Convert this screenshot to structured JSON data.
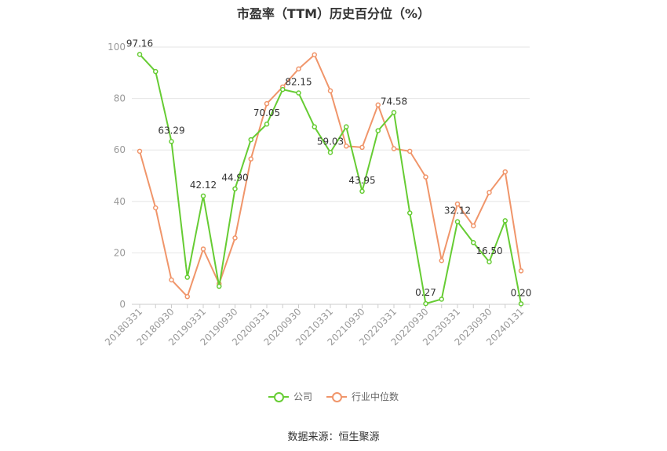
{
  "title": "市盈率（TTM）历史百分位（%）",
  "source": "数据来源：恒生聚源",
  "colors": {
    "company": "#66cc33",
    "industry": "#f0956a",
    "grid": "#e6e6e6",
    "axis": "#cccccc"
  },
  "chart_data": {
    "type": "line",
    "title": "市盈率（TTM）历史百分位（%）",
    "ylim": [
      0,
      100
    ],
    "yticks": [
      0,
      20,
      40,
      60,
      80,
      100
    ],
    "grid": true,
    "legend_position": "bottom",
    "x": [
      "20180331",
      "20180630",
      "20180930",
      "20181231",
      "20190331",
      "20190630",
      "20190930",
      "20191231",
      "20200331",
      "20200630",
      "20200930",
      "20201231",
      "20210331",
      "20210630",
      "20210930",
      "20211231",
      "20220331",
      "20220630",
      "20220930",
      "20221231",
      "20230331",
      "20230630",
      "20230930",
      "20231231",
      "20240131"
    ],
    "xtick_labels": [
      "20180331",
      "20180930",
      "20190331",
      "20190930",
      "20200331",
      "20200930",
      "20210331",
      "20210930",
      "20220331",
      "20220930",
      "20230331",
      "20230930",
      "20240131"
    ],
    "series": [
      {
        "name": "公司",
        "color": "#66cc33",
        "values": [
          97.16,
          90.5,
          63.29,
          10.5,
          42.12,
          7.0,
          44.9,
          64.0,
          70.05,
          83.5,
          82.15,
          69.0,
          59.03,
          69.0,
          43.95,
          67.5,
          74.58,
          35.5,
          0.27,
          2.0,
          32.12,
          24.0,
          16.5,
          32.5,
          0.2
        ]
      },
      {
        "name": "行业中位数",
        "color": "#f0956a",
        "values": [
          59.5,
          37.5,
          9.5,
          3.0,
          21.5,
          8.0,
          25.8,
          56.5,
          78.0,
          84.5,
          91.5,
          97.0,
          83.0,
          61.5,
          61.0,
          77.5,
          60.5,
          59.5,
          49.5,
          17.0,
          39.0,
          30.5,
          43.5,
          51.5,
          13.0
        ]
      }
    ],
    "data_labels": [
      {
        "index": 0,
        "text": "97.16"
      },
      {
        "index": 2,
        "text": "63.29"
      },
      {
        "index": 4,
        "text": "42.12"
      },
      {
        "index": 6,
        "text": "44.90"
      },
      {
        "index": 8,
        "text": "70.05"
      },
      {
        "index": 10,
        "text": "82.15"
      },
      {
        "index": 12,
        "text": "59.03"
      },
      {
        "index": 14,
        "text": "43.95"
      },
      {
        "index": 16,
        "text": "74.58"
      },
      {
        "index": 18,
        "text": "0.27"
      },
      {
        "index": 20,
        "text": "32.12"
      },
      {
        "index": 22,
        "text": "16.50"
      },
      {
        "index": 24,
        "text": "0.20"
      }
    ]
  }
}
